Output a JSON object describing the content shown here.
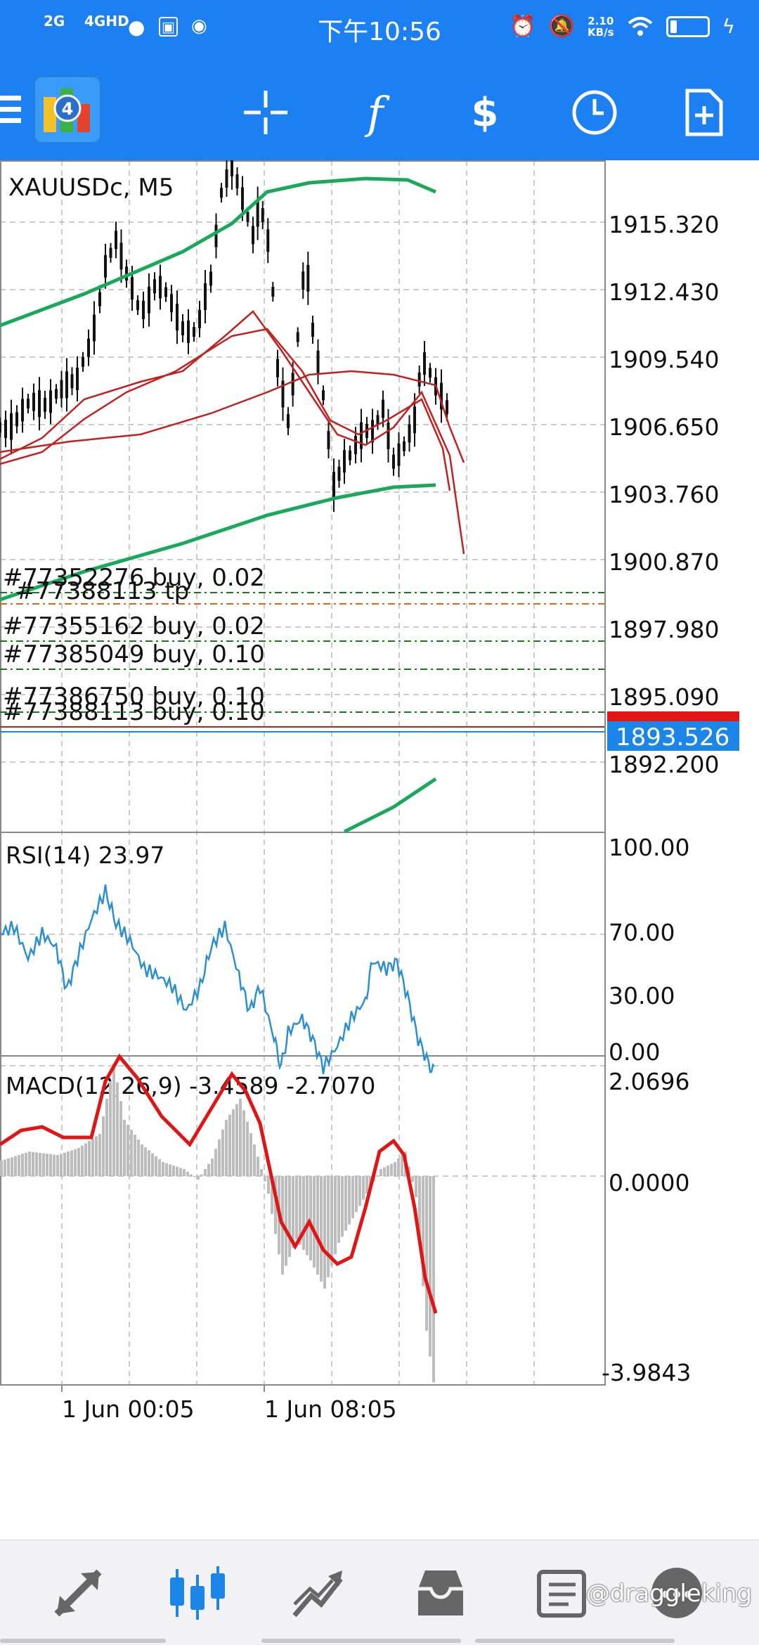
{
  "status_bar": {
    "signal_1": "2G",
    "signal_2": "4GHD",
    "time": "下午10:56",
    "net_speed_value": "2.10",
    "net_speed_unit": "KB/s"
  },
  "toolbar": {
    "icons": [
      "menu-icon",
      "app-logo-icon",
      "crosshair-icon",
      "function-icon",
      "trade-icon",
      "clock-icon",
      "new-document-icon"
    ]
  },
  "main_chart": {
    "symbol_title": "XAUUSDc, M5",
    "price_labels": [
      "1915.320",
      "1912.430",
      "1909.540",
      "1906.650",
      "1903.760",
      "1900.870",
      "1897.980",
      "1895.090",
      "1892.200"
    ],
    "current_bid": "1893.526",
    "orders": [
      "#77352276 buy, 0.02",
      "#77388113 tp",
      "#77355162 buy, 0.02",
      "#77385049 buy, 0.10",
      "#77386750 buy, 0.10",
      "#77388113 buy, 0.10"
    ]
  },
  "rsi_panel": {
    "title": "RSI(14) 23.97",
    "levels": [
      "100.00",
      "70.00",
      "30.00",
      "0.00"
    ]
  },
  "macd_panel": {
    "title": "MACD(12,26,9) -3.4589 -2.7070",
    "levels": [
      "2.0696",
      "0.0000",
      "-3.9843"
    ]
  },
  "time_axis": [
    "1 Jun 00:05",
    "1 Jun 08:05"
  ],
  "bottom_nav": {
    "items": [
      "quotes-icon",
      "chart-icon",
      "trade-icon",
      "history-icon",
      "news-icon",
      "messages-icon"
    ],
    "active": "chart-icon",
    "watermark": "@draggleking"
  },
  "colors": {
    "accent": "#1c7ff2",
    "bollinger": "#1aa85a",
    "ma": "#c2211f",
    "rsi_line": "#2b8fd0",
    "macd_signal": "#e01515",
    "macd_hist": "#bdbdbd",
    "order_line": "#1a7a1a",
    "tp_line": "#d2691e",
    "bid_bg": "#1c86e8"
  }
}
